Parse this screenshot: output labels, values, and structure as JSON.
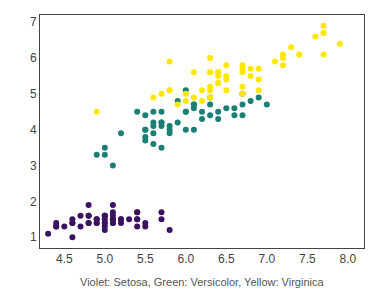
{
  "chart_data": {
    "type": "scatter",
    "caption": "Violet: Setosa, Green: Versicolor, Yellow: Virginica",
    "xlim": [
      4.2,
      8.2
    ],
    "ylim": [
      0.7,
      7.2
    ],
    "xticks": [
      4.5,
      {
        "value": 5.0,
        "label": "5.0"
      },
      5.5,
      {
        "value": 6.0,
        "label": "6.0"
      },
      6.5,
      {
        "value": 7.0,
        "label": "7.0"
      },
      7.5,
      {
        "value": 8.0,
        "label": "8.0"
      }
    ],
    "yticks": [
      1,
      2,
      3,
      4,
      5,
      6,
      7
    ],
    "grid": false,
    "series": [
      {
        "color": "#3b1262",
        "x": [
          5.1,
          4.9,
          4.7,
          4.6,
          5.0,
          5.4,
          4.6,
          5.0,
          4.4,
          4.9,
          5.4,
          4.8,
          4.8,
          4.3,
          5.8,
          5.7,
          5.4,
          5.1,
          5.7,
          5.1,
          5.4,
          5.1,
          4.6,
          5.1,
          4.8,
          5.0,
          5.0,
          5.2,
          5.2,
          4.7,
          4.8,
          5.4,
          5.2,
          5.5,
          4.9,
          5.0,
          5.5,
          4.9,
          4.4,
          5.1,
          5.0,
          4.5,
          4.4,
          5.0,
          5.1,
          4.8,
          5.1,
          4.6,
          5.3,
          5.0
        ],
        "y": [
          1.4,
          1.4,
          1.3,
          1.5,
          1.4,
          1.7,
          1.4,
          1.5,
          1.4,
          1.5,
          1.5,
          1.6,
          1.4,
          1.1,
          1.2,
          1.5,
          1.3,
          1.4,
          1.7,
          1.5,
          1.7,
          1.5,
          1.0,
          1.7,
          1.9,
          1.6,
          1.6,
          1.5,
          1.4,
          1.6,
          1.6,
          1.5,
          1.5,
          1.4,
          1.5,
          1.2,
          1.3,
          1.4,
          1.3,
          1.5,
          1.3,
          1.3,
          1.3,
          1.6,
          1.9,
          1.4,
          1.6,
          1.4,
          1.5,
          1.4
        ]
      },
      {
        "color": "#1a7f74",
        "x": [
          7.0,
          6.4,
          6.9,
          5.5,
          6.5,
          5.7,
          6.3,
          4.9,
          6.6,
          5.2,
          5.0,
          5.9,
          6.0,
          6.1,
          5.6,
          6.7,
          5.6,
          5.8,
          6.2,
          5.6,
          5.9,
          6.1,
          6.3,
          6.1,
          6.4,
          6.6,
          6.8,
          6.7,
          6.0,
          5.7,
          5.5,
          5.5,
          5.8,
          6.0,
          5.4,
          6.0,
          6.7,
          6.3,
          5.6,
          5.5,
          5.5,
          6.1,
          5.8,
          5.0,
          5.6,
          5.7,
          5.7,
          6.2,
          5.1,
          5.7
        ],
        "y": [
          4.7,
          4.5,
          4.9,
          4.0,
          4.6,
          4.5,
          4.7,
          3.3,
          4.6,
          3.9,
          3.5,
          4.2,
          4.0,
          4.7,
          3.6,
          4.4,
          4.5,
          4.1,
          4.5,
          3.9,
          4.8,
          4.0,
          4.9,
          4.7,
          4.3,
          4.4,
          4.8,
          5.0,
          4.5,
          3.5,
          3.8,
          3.7,
          3.9,
          5.1,
          4.5,
          4.5,
          4.7,
          4.4,
          4.1,
          4.0,
          4.4,
          4.6,
          4.0,
          3.3,
          4.2,
          4.2,
          4.2,
          4.3,
          3.0,
          4.1
        ]
      },
      {
        "color": "#ffe800",
        "x": [
          6.3,
          5.8,
          7.1,
          6.3,
          6.5,
          7.6,
          4.9,
          7.3,
          6.7,
          7.2,
          6.5,
          6.4,
          6.8,
          5.7,
          5.8,
          6.4,
          6.5,
          7.7,
          7.7,
          6.0,
          6.9,
          5.6,
          7.7,
          6.3,
          6.7,
          7.2,
          6.2,
          6.1,
          6.4,
          7.2,
          7.4,
          7.9,
          6.4,
          6.3,
          6.1,
          7.7,
          6.3,
          6.4,
          6.0,
          6.9,
          6.7,
          6.9,
          5.8,
          6.8,
          6.7,
          6.7,
          6.3,
          6.5,
          6.2,
          5.9
        ],
        "y": [
          6.0,
          5.1,
          5.9,
          5.6,
          5.8,
          6.6,
          4.5,
          6.3,
          5.8,
          6.1,
          5.1,
          5.3,
          5.5,
          5.0,
          5.1,
          5.3,
          5.5,
          6.7,
          6.9,
          5.0,
          5.7,
          4.9,
          6.7,
          4.9,
          5.7,
          6.0,
          4.8,
          4.9,
          5.6,
          5.8,
          6.1,
          6.4,
          5.6,
          5.1,
          5.6,
          6.1,
          5.6,
          5.5,
          4.8,
          5.4,
          5.6,
          5.1,
          5.9,
          5.7,
          5.2,
          5.0,
          5.2,
          5.4,
          5.1,
          4.7
        ]
      }
    ]
  }
}
